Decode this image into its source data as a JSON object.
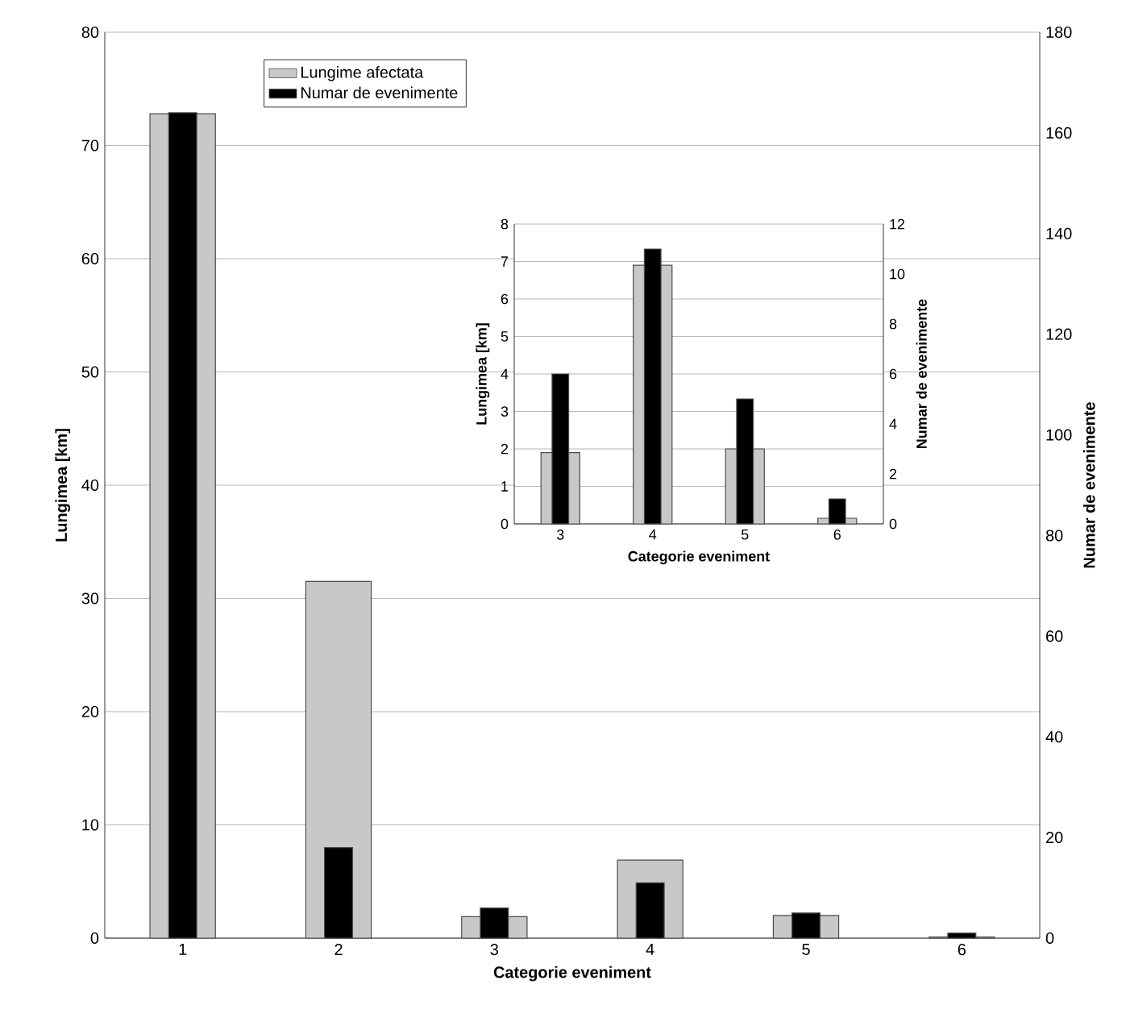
{
  "chart_data": [
    {
      "type": "bar",
      "xlabel": "Categorie eveniment",
      "ylabel": "Lungimea [km]",
      "y2label": "Numar de evenimente",
      "categories": [
        "1",
        "2",
        "3",
        "4",
        "5",
        "6"
      ],
      "series": [
        {
          "name": "Lungime afectata",
          "color": "#c8c8c8",
          "values": [
            72.8,
            31.5,
            1.9,
            6.9,
            2.0,
            0.1
          ]
        },
        {
          "name": "Numar de evenimente",
          "color": "#000000",
          "axis": "y2",
          "values": [
            164,
            18,
            6,
            11,
            5,
            1
          ]
        }
      ],
      "ylim": [
        0,
        80
      ],
      "yticks": [
        0,
        10,
        20,
        30,
        40,
        50,
        60,
        70,
        80
      ],
      "y2lim": [
        0,
        180
      ],
      "y2ticks": [
        0,
        20,
        40,
        60,
        80,
        100,
        120,
        140,
        160,
        180
      ],
      "grid": "y",
      "legend": "top left"
    },
    {
      "type": "bar",
      "xlabel": "Categorie eveniment",
      "ylabel": "Lungimea [km]",
      "y2label": "Numar de evenimente",
      "categories": [
        "3",
        "4",
        "5",
        "6"
      ],
      "series": [
        {
          "color": "#c8c8c8",
          "values": [
            1.9,
            6.9,
            2.0,
            0.15
          ]
        },
        {
          "color": "#000000",
          "axis": "y2",
          "values": [
            6,
            11,
            5,
            1
          ]
        }
      ],
      "ylim": [
        0,
        8
      ],
      "yticks": [
        0,
        1,
        2,
        3,
        4,
        5,
        6,
        7,
        8
      ],
      "y2lim": [
        0,
        12
      ],
      "y2ticks": [
        0,
        2,
        4,
        6,
        8,
        10,
        12
      ],
      "grid": "y"
    }
  ]
}
